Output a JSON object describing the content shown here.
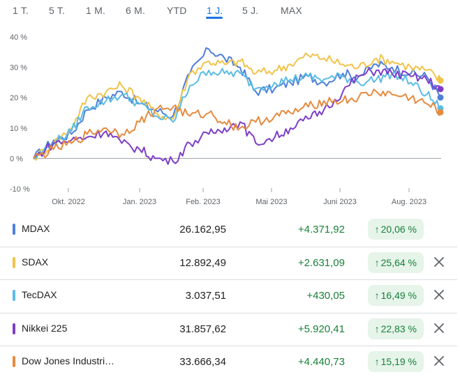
{
  "tabs": [
    "1 T.",
    "5 T.",
    "1 M.",
    "6 M.",
    "YTD",
    "1 J.",
    "5 J.",
    "MAX"
  ],
  "active_tab": "1 J.",
  "chart_data": {
    "type": "line",
    "y_unit": "%",
    "ylim": [
      -10,
      40
    ],
    "yticks": [
      "40 %",
      "30 %",
      "20 %",
      "10 %",
      "0 %",
      "-10 %"
    ],
    "ytick_values": [
      40,
      30,
      20,
      10,
      0,
      -10
    ],
    "xticks": [
      "Okt. 2022",
      "Jan. 2023",
      "Feb. 2023",
      "Mai 2023",
      "Juni 2023",
      "Aug. 2023"
    ],
    "grid": "zero-line",
    "x_dates": [
      "2022-08-28",
      "2022-09-15",
      "2022-10-01",
      "2022-10-15",
      "2022-11-01",
      "2022-11-15",
      "2022-12-01",
      "2022-12-15",
      "2022-12-31",
      "2023-01-15",
      "2023-02-01",
      "2023-02-15",
      "2023-03-01",
      "2023-03-15",
      "2023-04-01",
      "2023-04-15",
      "2023-05-01",
      "2023-05-15",
      "2023-06-01",
      "2023-06-15",
      "2023-07-01",
      "2023-07-15",
      "2023-08-01",
      "2023-08-15",
      "2023-08-28"
    ],
    "series": [
      {
        "name": "MDAX",
        "color": "#4f7fd9",
        "values": [
          0,
          6,
          8,
          16,
          20,
          22,
          18,
          16,
          14,
          28,
          36,
          33,
          30,
          22,
          23,
          25,
          27,
          25,
          28,
          27,
          31,
          30,
          28,
          27,
          20.06
        ]
      },
      {
        "name": "SDAX",
        "color": "#f0c34a",
        "values": [
          0,
          5,
          10,
          20,
          22,
          24,
          20,
          15,
          13,
          28,
          32,
          31,
          32,
          28,
          29,
          31,
          34,
          33,
          31,
          30,
          33,
          32,
          30,
          29,
          25.64
        ]
      },
      {
        "name": "TecDAX",
        "color": "#5bbce3",
        "values": [
          0,
          5,
          9,
          17,
          19,
          21,
          18,
          14,
          12,
          24,
          29,
          28,
          28,
          23,
          25,
          26,
          27,
          26,
          27,
          25,
          26,
          28,
          25,
          21,
          16.49
        ]
      },
      {
        "name": "Nikkei 225",
        "color": "#7e3ec7",
        "values": [
          0,
          5,
          6,
          7,
          9,
          5,
          3,
          0,
          -1,
          5,
          8,
          10,
          12,
          5,
          7,
          10,
          13,
          16,
          22,
          27,
          29,
          28,
          27,
          26,
          22.83
        ]
      },
      {
        "name": "Dow Jones Industri…",
        "color": "#e58a3e",
        "values": [
          0,
          3,
          5,
          8,
          10,
          8,
          12,
          16,
          17,
          14,
          15,
          12,
          10,
          12,
          14,
          15,
          17,
          19,
          19,
          20,
          22,
          21,
          20,
          18,
          15.19
        ]
      }
    ]
  },
  "rows": [
    {
      "name": "MDAX",
      "color": "#4f7fd9",
      "price": "26.162,95",
      "change": "+4.371,92",
      "pct": "20,06 %",
      "removable": false
    },
    {
      "name": "SDAX",
      "color": "#f0c34a",
      "price": "12.892,49",
      "change": "+2.631,09",
      "pct": "25,64 %",
      "removable": true
    },
    {
      "name": "TecDAX",
      "color": "#5bbce3",
      "price": "3.037,51",
      "change": "+430,05",
      "pct": "16,49 %",
      "removable": true
    },
    {
      "name": "Nikkei 225",
      "color": "#7e3ec7",
      "price": "31.857,62",
      "change": "+5.920,41",
      "pct": "22,83 %",
      "removable": true
    },
    {
      "name": "Dow Jones Industri…",
      "color": "#e58a3e",
      "price": "33.666,34",
      "change": "+4.440,73",
      "pct": "15,19 %",
      "removable": true
    }
  ],
  "icons": {
    "trend": "arrow-up-icon",
    "remove": "close-icon"
  }
}
